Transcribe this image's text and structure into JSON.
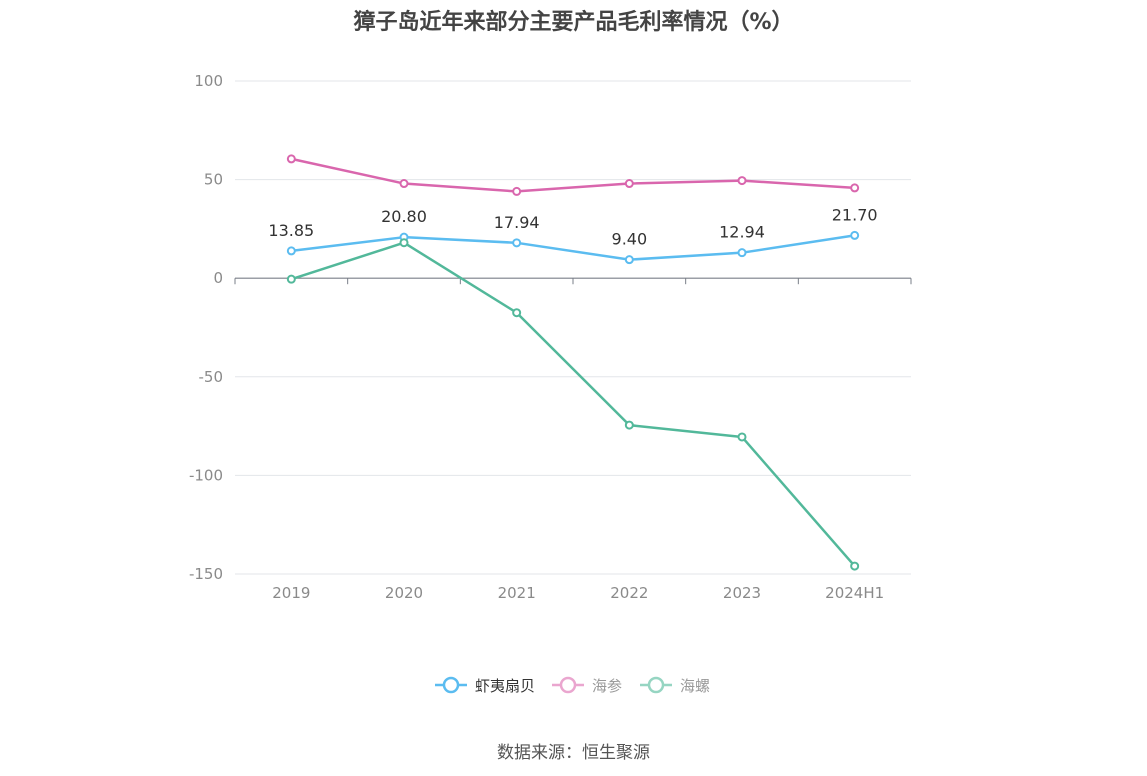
{
  "chart_data": {
    "type": "line",
    "title": "獐子岛近年来部分主要产品毛利率情况（%）",
    "categories": [
      "2019",
      "2020",
      "2021",
      "2022",
      "2023",
      "2024H1"
    ],
    "ylim": [
      -150,
      100
    ],
    "yticks": [
      100,
      50,
      0,
      -50,
      -100,
      -150
    ],
    "grid": true,
    "legend_position": "bottom",
    "series": [
      {
        "name": "虾夷扇贝",
        "color": "#5bbcf0",
        "values": [
          13.85,
          20.8,
          17.94,
          9.4,
          12.94,
          21.7
        ],
        "labels": [
          "13.85",
          "20.80",
          "17.94",
          "9.40",
          "12.94",
          "21.70"
        ]
      },
      {
        "name": "海参",
        "color": "#d966ad",
        "values": [
          60.5,
          48.0,
          44.0,
          48.0,
          49.5,
          45.8
        ]
      },
      {
        "name": "海螺",
        "color": "#52b89a",
        "values": [
          -0.5,
          18.0,
          -17.5,
          -74.5,
          -80.5,
          -146.0
        ]
      }
    ]
  },
  "source": "数据来源：恒生聚源"
}
